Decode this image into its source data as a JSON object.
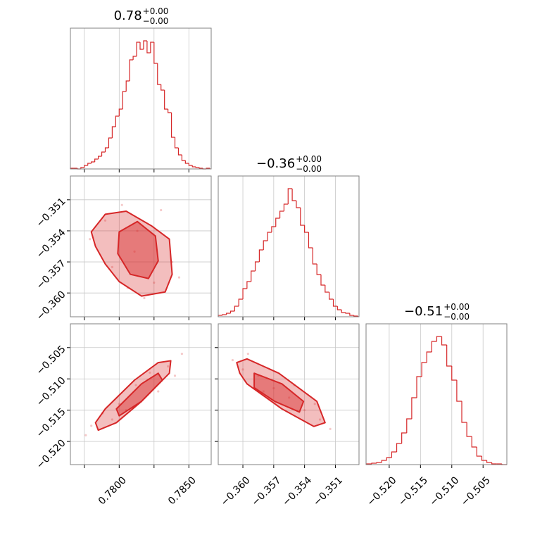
{
  "chart_data": [
    {
      "type": "histogram",
      "color": "#d62728",
      "title": {
        "text": "0.78",
        "plus": "+0.00",
        "minus": "−0.00"
      },
      "bins": [
        0.7765,
        0.77675,
        0.777,
        0.77725,
        0.7775,
        0.77775,
        0.778,
        0.77825,
        0.7785,
        0.77875,
        0.779,
        0.77925,
        0.7795,
        0.77975,
        0.78,
        0.78025,
        0.7805,
        0.78075,
        0.781,
        0.78125,
        0.7815,
        0.78175,
        0.782,
        0.78225,
        0.7825,
        0.78275,
        0.783,
        0.78325,
        0.7835,
        0.78375,
        0.784,
        0.78425,
        0.7845,
        0.78475,
        0.785,
        0.78525,
        0.7855,
        0.78575,
        0.786,
        0.78625,
        0.7865
      ],
      "counts": [
        1,
        1,
        0,
        2,
        5,
        8,
        10,
        14,
        18,
        24,
        30,
        44,
        60,
        75,
        85,
        110,
        125,
        155,
        160,
        180,
        170,
        182,
        165,
        180,
        150,
        120,
        112,
        85,
        80,
        45,
        30,
        20,
        12,
        8,
        5,
        3,
        2,
        1,
        0,
        1
      ],
      "xlim": [
        0.7765,
        0.7866
      ],
      "ylim": [
        0,
        200
      ],
      "xticks": [
        0.7775,
        0.78,
        0.7825,
        0.785
      ],
      "grid": true
    },
    {
      "type": "scatter",
      "color": "#d62728",
      "x": [
        0.779,
        0.7802,
        0.7811,
        0.7825,
        0.7838,
        0.7795,
        0.7818,
        0.783,
        0.7806,
        0.7779,
        0.7843,
        0.7813
      ],
      "y": [
        -0.353,
        -0.3515,
        -0.356,
        -0.359,
        -0.357,
        -0.3575,
        -0.3605,
        -0.352,
        -0.3595,
        -0.3548,
        -0.3585,
        -0.354
      ],
      "contours": [
        {
          "x": [
            0.778,
            0.779,
            0.7805,
            0.7823,
            0.7836,
            0.7838,
            0.7833,
            0.7816,
            0.78,
            0.779,
            0.7783
          ],
          "y": [
            -0.3541,
            -0.3524,
            -0.3521,
            -0.3535,
            -0.3548,
            -0.3582,
            -0.3599,
            -0.3603,
            -0.3589,
            -0.3572,
            -0.3555
          ]
        },
        {
          "x": [
            0.78,
            0.7813,
            0.7826,
            0.7828,
            0.7821,
            0.7808,
            0.7799
          ],
          "y": [
            -0.3541,
            -0.3531,
            -0.3545,
            -0.3569,
            -0.3586,
            -0.3582,
            -0.3562
          ]
        }
      ],
      "xlim": [
        0.7765,
        0.7866
      ],
      "ylim": [
        -0.3623,
        -0.3487
      ],
      "xticks": [
        0.7775,
        0.78,
        0.7825,
        0.785
      ],
      "yticks": [
        {
          "value": -0.351,
          "label": "−0.351"
        },
        {
          "value": -0.354,
          "label": "−0.354"
        },
        {
          "value": -0.357,
          "label": "−0.357"
        },
        {
          "value": -0.36,
          "label": "−0.360"
        }
      ],
      "grid": true
    },
    {
      "type": "histogram",
      "color": "#d62728",
      "title": {
        "text": "−0.36",
        "plus": "+0.00",
        "minus": "−0.00"
      },
      "bins": [
        -0.3624,
        -0.362,
        -0.3616,
        -0.3612,
        -0.3608,
        -0.3604,
        -0.36,
        -0.3596,
        -0.3592,
        -0.3588,
        -0.3584,
        -0.358,
        -0.3576,
        -0.3572,
        -0.3568,
        -0.3564,
        -0.356,
        -0.3556,
        -0.3552,
        -0.3548,
        -0.3544,
        -0.354,
        -0.3536,
        -0.3532,
        -0.3528,
        -0.3524,
        -0.352,
        -0.3516,
        -0.3512,
        -0.3508,
        -0.3504,
        -0.35,
        -0.3496,
        -0.3492,
        -0.3488
      ],
      "counts": [
        2,
        3,
        5,
        8,
        15,
        25,
        40,
        50,
        65,
        78,
        95,
        108,
        120,
        128,
        140,
        150,
        160,
        182,
        165,
        155,
        130,
        120,
        98,
        75,
        60,
        45,
        35,
        25,
        15,
        10,
        6,
        5,
        2,
        1
      ],
      "xlim": [
        -0.3624,
        -0.3487
      ],
      "ylim": [
        0,
        200
      ],
      "xticks": [
        -0.36,
        -0.357,
        -0.354,
        -0.351
      ],
      "grid": true
    },
    {
      "type": "scatter",
      "color": "#d62728",
      "x": [
        0.778,
        0.7788,
        0.78,
        0.7812,
        0.7822,
        0.7835,
        0.7845,
        0.7805,
        0.7828,
        0.7795,
        0.784,
        0.7776
      ],
      "y": [
        -0.5175,
        -0.5155,
        -0.514,
        -0.511,
        -0.509,
        -0.508,
        -0.506,
        -0.515,
        -0.512,
        -0.5165,
        -0.5095,
        -0.519
      ],
      "contours": [
        {
          "x": [
            0.7783,
            0.779,
            0.7811,
            0.7828,
            0.7837,
            0.7836,
            0.7816,
            0.7798,
            0.7785
          ],
          "y": [
            -0.517,
            -0.5148,
            -0.5102,
            -0.5074,
            -0.5071,
            -0.5091,
            -0.5136,
            -0.517,
            -0.5182
          ]
        },
        {
          "x": [
            0.7798,
            0.7816,
            0.7828,
            0.7831,
            0.7816,
            0.78
          ],
          "y": [
            -0.5148,
            -0.5108,
            -0.5091,
            -0.5102,
            -0.5136,
            -0.5159
          ]
        }
      ],
      "xlim": [
        0.7765,
        0.7866
      ],
      "ylim": [
        -0.5237,
        -0.5012
      ],
      "xticks": [
        0.7775,
        {
          "value": 0.78,
          "label": "0.7800"
        },
        0.7825,
        {
          "value": 0.785,
          "label": "0.7850"
        }
      ],
      "yticks": [
        {
          "value": -0.505,
          "label": "−0.505"
        },
        {
          "value": -0.51,
          "label": "−0.510"
        },
        {
          "value": -0.515,
          "label": "−0.515"
        },
        {
          "value": -0.52,
          "label": "−0.520"
        }
      ],
      "grid": true
    },
    {
      "type": "scatter",
      "color": "#d62728",
      "x": [
        -0.361,
        -0.36,
        -0.3585,
        -0.357,
        -0.3555,
        -0.354,
        -0.3525,
        -0.3515,
        -0.358,
        -0.355,
        -0.3595,
        -0.353
      ],
      "y": [
        -0.507,
        -0.5085,
        -0.5095,
        -0.5115,
        -0.513,
        -0.515,
        -0.5165,
        -0.518,
        -0.512,
        -0.511,
        -0.506,
        -0.514
      ],
      "contours": [
        {
          "x": [
            -0.3606,
            -0.3596,
            -0.3565,
            -0.3528,
            -0.352,
            -0.3531,
            -0.3562,
            -0.3596,
            -0.3603
          ],
          "y": [
            -0.5074,
            -0.5068,
            -0.5091,
            -0.5136,
            -0.517,
            -0.5176,
            -0.5148,
            -0.5108,
            -0.5091
          ]
        },
        {
          "x": [
            -0.3589,
            -0.3562,
            -0.3541,
            -0.3545,
            -0.3569,
            -0.3589
          ],
          "y": [
            -0.5091,
            -0.5108,
            -0.5136,
            -0.5153,
            -0.5136,
            -0.5114
          ]
        }
      ],
      "xlim": [
        -0.3624,
        -0.3487
      ],
      "ylim": [
        -0.5237,
        -0.5012
      ],
      "xticks": [
        {
          "value": -0.36,
          "label": "−0.360"
        },
        {
          "value": -0.357,
          "label": "−0.357"
        },
        {
          "value": -0.354,
          "label": "−0.354"
        },
        {
          "value": -0.351,
          "label": "−0.351"
        }
      ],
      "yticks": [
        -0.505,
        -0.51,
        -0.515,
        -0.52
      ],
      "grid": true
    },
    {
      "type": "histogram",
      "color": "#d62728",
      "title": {
        "text": "−0.51",
        "plus": "+0.00",
        "minus": "−0.00"
      },
      "bins": [
        -0.5236,
        -0.5228,
        -0.522,
        -0.5212,
        -0.5204,
        -0.5196,
        -0.5188,
        -0.518,
        -0.5172,
        -0.5164,
        -0.5156,
        -0.5148,
        -0.514,
        -0.5132,
        -0.5124,
        -0.5116,
        -0.5108,
        -0.51,
        -0.5092,
        -0.5084,
        -0.5076,
        -0.5068,
        -0.506,
        -0.5052,
        -0.5044,
        -0.5036,
        -0.5028,
        -0.502,
        -0.5012
      ],
      "counts": [
        1,
        2,
        3,
        6,
        10,
        18,
        30,
        45,
        65,
        95,
        125,
        145,
        160,
        175,
        182,
        170,
        140,
        120,
        90,
        60,
        40,
        25,
        12,
        6,
        3,
        1,
        1,
        0
      ],
      "xlim": [
        -0.5237,
        -0.5012
      ],
      "ylim": [
        0,
        200
      ],
      "xticks": [
        {
          "value": -0.52,
          "label": "−0.520"
        },
        {
          "value": -0.515,
          "label": "−0.515"
        },
        {
          "value": -0.51,
          "label": "−0.510"
        },
        {
          "value": -0.505,
          "label": "−0.505"
        }
      ],
      "grid": true
    }
  ]
}
